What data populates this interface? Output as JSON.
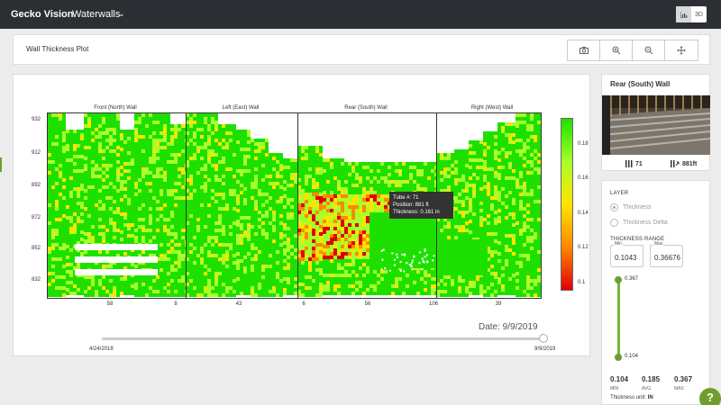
{
  "app": {
    "brand": "Gecko Vision",
    "project": "Waterwalls",
    "view_modes": [
      "2D",
      "3D"
    ],
    "active_view": "2D"
  },
  "toolbar": {
    "title": "Wall Thickness Plot",
    "tools": [
      "camera-icon",
      "zoom-in-icon",
      "zoom-out-icon",
      "pan-icon"
    ]
  },
  "chart_data": {
    "type": "heatmap",
    "title": "",
    "panels": [
      "Front (North) Wall",
      "Left (East) Wall",
      "Rear (South) Wall",
      "Right (West) Wall"
    ],
    "y_ticks": [
      "932",
      "912",
      "892",
      "872",
      "852",
      "832"
    ],
    "x_ticks": [
      "58",
      "8",
      "43",
      "6",
      "56",
      "106",
      "39"
    ],
    "colorbar_ticks": [
      "0.18",
      "0.16",
      "0.14",
      "0.12",
      "0.1"
    ],
    "colorbar_range": [
      0.1,
      0.19
    ],
    "colorscale": [
      "#e00000",
      "#ff8800",
      "#ffe400",
      "#a8ff2a",
      "#1ee000"
    ],
    "ylim": [
      826,
      936
    ],
    "thin_region_range_on_rear_wall": [
      850,
      890
    ],
    "grid": false
  },
  "tooltip": {
    "tube": "Tube #: 71",
    "position": "Position: 881 ft",
    "thickness": "Thickness: 0.161 in"
  },
  "date_slider": {
    "current_label": "Date: 9/9/2019",
    "start": "4/24/2018",
    "end": "9/9/2019",
    "position_fraction": 1.0
  },
  "wall": {
    "title": "Rear (South) Wall",
    "tube_count": "71",
    "elevation": "881ft"
  },
  "layer": {
    "heading": "LAYER",
    "options": [
      "Thickness",
      "Thickness Delta"
    ],
    "selected": "Thickness",
    "range_heading": "THICKNESS RANGE",
    "min_caption": "Min",
    "max_caption": "Max",
    "min_value": "0.1043",
    "max_value": "0.36676",
    "slider_top": "0.367",
    "slider_bottom": "0.104",
    "stats": {
      "min": "0.104",
      "avg": "0.185",
      "max": "0.367"
    },
    "stat_captions": {
      "min": "MIN",
      "avg": "AVG",
      "max": "MAX"
    },
    "unit_label": "Thickness unit:",
    "unit_value": "IN"
  },
  "help": "?",
  "colors": {
    "accent": "#6d9d31",
    "topbar": "#2b2f33"
  }
}
